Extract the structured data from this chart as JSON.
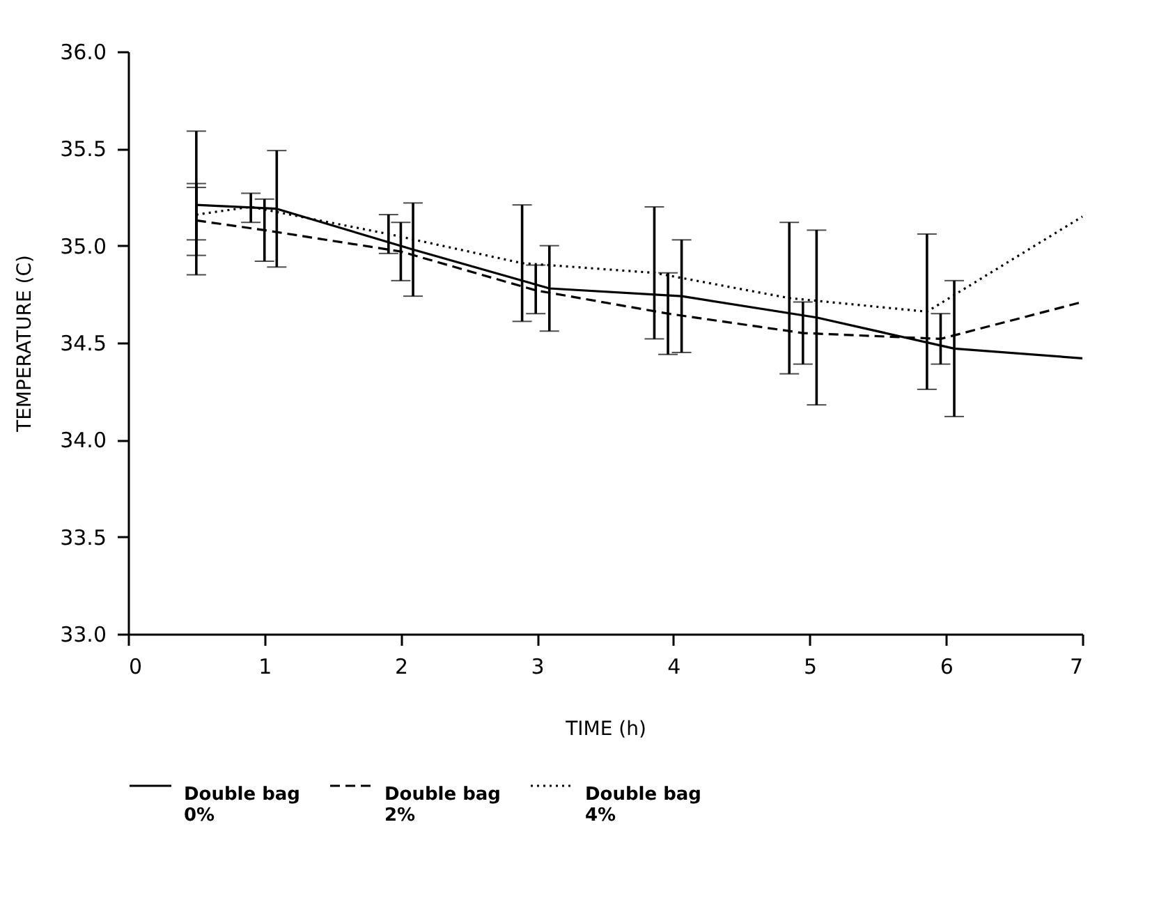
{
  "chart_data": {
    "type": "line",
    "xlabel": "TIME (h)",
    "ylabel": "TEMPERATURE (C)",
    "xlim": [
      0,
      7
    ],
    "xticks": [
      0,
      1,
      2,
      3,
      4,
      5,
      6,
      7
    ],
    "ylim": [
      33,
      36
    ],
    "yticks": [
      {
        "value": 33,
        "label": "33.0"
      },
      {
        "value": 33.5,
        "label": "33.5"
      },
      {
        "value": 34,
        "label": "34.0"
      },
      {
        "value": 34.5,
        "label": "34.5"
      },
      {
        "value": 35,
        "label": "35.0"
      },
      {
        "value": 35.5,
        "label": "35.5"
      },
      {
        "value": 36,
        "label": "36.0"
      }
    ],
    "grid": false,
    "legend": "bottom",
    "marker": "none",
    "series": [
      {
        "name": "Double bag 0%",
        "color": "#000000",
        "line_style": "solid",
        "x": [
          0.5,
          1.09,
          2.09,
          3.09,
          4.06,
          5.05,
          6.06,
          7
        ],
        "values": [
          35.21,
          35.19,
          34.98,
          34.78,
          34.74,
          34.63,
          34.47,
          34.42
        ],
        "errors": [
          [
            34.85,
            35.59
          ],
          [
            34.89,
            35.49
          ],
          [
            34.74,
            35.22
          ],
          [
            34.56,
            35.0
          ],
          [
            34.45,
            35.03
          ],
          [
            34.18,
            35.08
          ],
          [
            34.12,
            34.82
          ],
          null
        ]
      },
      {
        "name": "Double bag 2%",
        "color": "#000000",
        "line_style": "dashed",
        "x": [
          0.5,
          1.0,
          2.0,
          2.99,
          3.96,
          4.95,
          5.96,
          7
        ],
        "values": [
          35.13,
          35.08,
          34.97,
          34.77,
          34.65,
          34.55,
          34.52,
          34.71
        ],
        "errors": [
          [
            34.95,
            35.3
          ],
          [
            34.92,
            35.24
          ],
          [
            34.82,
            35.12
          ],
          [
            34.65,
            34.9
          ],
          [
            34.44,
            34.86
          ],
          [
            34.39,
            34.71
          ],
          [
            34.39,
            34.65
          ],
          null
        ]
      },
      {
        "name": "Double bag 4%",
        "color": "#000000",
        "line_style": "dotted",
        "x": [
          0.5,
          0.9,
          1.91,
          2.89,
          3.86,
          4.85,
          5.86,
          7
        ],
        "values": [
          35.16,
          35.2,
          35.06,
          34.91,
          34.86,
          34.73,
          34.66,
          35.15
        ],
        "errors": [
          [
            35.03,
            35.32
          ],
          [
            35.12,
            35.27
          ],
          [
            34.96,
            35.16
          ],
          [
            34.61,
            35.21
          ],
          [
            34.52,
            35.2
          ],
          [
            34.34,
            35.12
          ],
          [
            34.26,
            35.06
          ],
          null
        ]
      }
    ]
  }
}
